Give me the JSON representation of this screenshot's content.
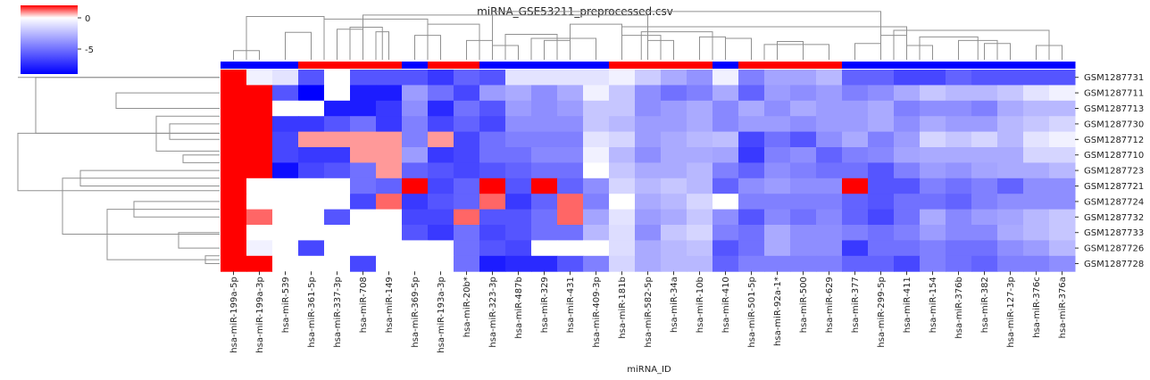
{
  "chart_data": {
    "type": "heatmap",
    "title": "miRNA_GSE53211_preprocessed.csv",
    "xlabel": "miRNA_ID",
    "ylabel": "",
    "colormap": [
      "#0000ff",
      "#ffffff",
      "#ff0000"
    ],
    "colorbar": {
      "ticks": [
        0,
        -5
      ],
      "range": [
        -9,
        2
      ]
    },
    "columns": [
      "hsa-miR-199a-5p",
      "hsa-miR-199a-3p",
      "hsa-miR-539",
      "hsa-miR-361-5p",
      "hsa-miR-337-3p",
      "hsa-miR-708",
      "hsa-miR-149",
      "hsa-miR-369-5p",
      "hsa-miR-193a-3p",
      "hsa-miR-20b*",
      "hsa-miR-323-3p",
      "hsa-miR-487b",
      "hsa-miR-329",
      "hsa-miR-431",
      "hsa-miR-409-3p",
      "hsa-miR-181b",
      "hsa-miR-582-5p",
      "hsa-miR-34a",
      "hsa-miR-10b",
      "hsa-miR-410",
      "hsa-miR-501-5p",
      "hsa-miR-92a-1*",
      "hsa-miR-500",
      "hsa-miR-629",
      "hsa-miR-377",
      "hsa-miR-299-5p",
      "hsa-miR-411",
      "hsa-miR-154",
      "hsa-miR-376b",
      "hsa-miR-382",
      "hsa-miR-127-3p",
      "hsa-miR-376c",
      "hsa-miR-376a"
    ],
    "rows": [
      "GSM1287731",
      "GSM1287711",
      "GSM1287713",
      "GSM1287730",
      "GSM1287712",
      "GSM1287710",
      "GSM1287723",
      "GSM1287721",
      "GSM1287724",
      "GSM1287732",
      "GSM1287733",
      "GSM1287726",
      "GSM1287728"
    ],
    "column_groups": [
      "blue",
      "blue",
      "blue",
      "red",
      "red",
      "red",
      "red",
      "blue",
      "red",
      "red",
      "blue",
      "blue",
      "blue",
      "blue",
      "blue",
      "red",
      "red",
      "red",
      "red",
      "blue",
      "red",
      "red",
      "red",
      "red",
      "blue",
      "blue",
      "blue",
      "blue",
      "blue",
      "blue",
      "blue",
      "blue",
      "blue"
    ],
    "column_group_colors": {
      "red": "#ff0000",
      "blue": "#0000ff"
    },
    "values": [
      [
        0.5,
        -0.5,
        -1,
        -6,
        0,
        -6,
        -6,
        -6,
        -7,
        -5.5,
        -6,
        -1,
        -1,
        -1,
        -1,
        -0.5,
        -1.8,
        -3,
        -3.8,
        -0.5,
        -4.5,
        -3.2,
        -3.2,
        -2.5,
        -5.5,
        -5.5,
        -6.5,
        -6.5,
        -5.5,
        -6,
        -6,
        -6,
        -6
      ],
      [
        2.5,
        1,
        -6,
        -9,
        0,
        -8,
        -8,
        -3.5,
        -5,
        -6.5,
        -3.5,
        -3,
        -4,
        -3,
        -0.5,
        -2,
        -4,
        -5,
        -4.5,
        -3,
        -5.5,
        -3.5,
        -4,
        -3.5,
        -4.5,
        -4,
        -3,
        -2,
        -2.5,
        -2.5,
        -2,
        -1,
        -0.5
      ],
      [
        2,
        0.5,
        0,
        0,
        -8,
        -8,
        -7,
        -4,
        -7.5,
        -5,
        -6,
        -3.5,
        -4,
        -3.5,
        -2,
        -2,
        -4,
        -3.5,
        -3,
        -4.2,
        -3,
        -4,
        -3,
        -3.5,
        -3.5,
        -3,
        -4.5,
        -4,
        -4,
        -4.5,
        -3,
        -2.5,
        -2.5
      ],
      [
        2.2,
        0.6,
        -7,
        -7,
        -6,
        -5,
        -7,
        -4.5,
        -6.5,
        -5.5,
        -6.5,
        -4,
        -4,
        -4,
        -2,
        -2.5,
        -3.5,
        -3.5,
        -3,
        -4.2,
        -3.5,
        -3.5,
        -4,
        -3.5,
        -3.5,
        -3,
        -4,
        -3,
        -3.5,
        -3.5,
        -2.5,
        -2,
        -1.5
      ],
      [
        2.5,
        0.5,
        -6.5,
        0.2,
        0.2,
        0.2,
        0.2,
        -4.5,
        0.2,
        -6.5,
        -5,
        -4.5,
        -4.5,
        -4.5,
        -1,
        -1.5,
        -3.5,
        -3,
        -2.5,
        -2.3,
        -6.5,
        -5,
        -6,
        -4,
        -3,
        -4.5,
        -3.5,
        -1.5,
        -2,
        -1.5,
        -2.5,
        -1,
        -0.5
      ],
      [
        2.2,
        0.5,
        -6.5,
        -7,
        -7,
        0.2,
        0.2,
        -3.5,
        -7,
        -6.5,
        -5,
        -5,
        -4.2,
        -4.2,
        -0.5,
        -2.5,
        -4,
        -3,
        -3,
        -3.2,
        -7,
        -4.5,
        -4,
        -5.5,
        -4.5,
        -4.2,
        -3.2,
        -3,
        -3,
        -3,
        -3,
        -1.5,
        -1.5
      ],
      [
        0.9,
        0.5,
        -8.5,
        -6.5,
        -6,
        -5,
        0.2,
        -5.5,
        -6,
        -6.5,
        -6,
        -5.5,
        -5,
        -5,
        0,
        -2,
        -3,
        -3,
        -2.5,
        -4.5,
        -5.5,
        -4,
        -4.5,
        -5,
        -5,
        -6,
        -4.5,
        -3.5,
        -3.8,
        -3.2,
        -3,
        -3,
        -2.5
      ],
      [
        0.5,
        0,
        0,
        0,
        0,
        -5,
        -5.5,
        0.5,
        -6.5,
        -5.5,
        0.5,
        -6,
        0.5,
        -5.5,
        -4,
        -1.5,
        -2.5,
        -2,
        -2.5,
        -5.5,
        -4,
        -3.5,
        -4,
        -4,
        0.5,
        -6,
        -6,
        -4.5,
        -5,
        -4.5,
        -5.5,
        -4,
        -4
      ],
      [
        0.6,
        0,
        0,
        0,
        0,
        -6.5,
        0.3,
        -7,
        -6,
        -5.5,
        0.3,
        -7,
        -5.5,
        0.3,
        -4.5,
        0,
        -3,
        -2.5,
        -1.5,
        0,
        -4.5,
        -4.5,
        -4.5,
        -4.5,
        -5.5,
        -6,
        -5,
        -5,
        -5.5,
        -4.5,
        -4,
        -4,
        -4
      ],
      [
        1,
        0.3,
        0,
        0,
        -6,
        0,
        0,
        -6.5,
        -6.5,
        0.3,
        -6,
        -6,
        -5,
        0.3,
        -3.2,
        -1,
        -3.5,
        -3,
        -2,
        -4,
        -6,
        -4.2,
        -5,
        -4.2,
        -5.5,
        -6.5,
        -5,
        -3,
        -4.2,
        -3.5,
        -3.2,
        -2.5,
        -2
      ],
      [
        0.5,
        0,
        0,
        0,
        0,
        0,
        0,
        -6,
        -7,
        -5,
        -6.5,
        -6,
        -5,
        -5,
        -2.5,
        -1.2,
        -4,
        -2,
        -1.5,
        -4.5,
        -5,
        -3,
        -4,
        -4,
        -4.5,
        -5,
        -4.5,
        -3.5,
        -4.2,
        -4.2,
        -3,
        -2.5,
        -2
      ],
      [
        0.6,
        -0.5,
        0,
        -6.5,
        0,
        0,
        0,
        0,
        0,
        -5,
        -6,
        -6.5,
        0,
        0,
        0,
        -1.2,
        -3,
        -2.5,
        -2.2,
        -6,
        -5,
        -3,
        -4,
        -4,
        -7,
        -5,
        -5,
        -4.5,
        -5,
        -5,
        -4,
        -3.5,
        -2.5
      ],
      [
        0.9,
        0.5,
        0,
        0,
        0,
        -6.5,
        0,
        0,
        0,
        -5,
        -8,
        -7.5,
        -7.5,
        -6,
        -4.5,
        -1.5,
        -3,
        -2.5,
        -2.5,
        -5.5,
        -4.5,
        -4.5,
        -4.5,
        -4.5,
        -5.5,
        -5.5,
        -6.5,
        -4.5,
        -5,
        -5.5,
        -4.5,
        -4.5,
        -4
      ]
    ]
  }
}
